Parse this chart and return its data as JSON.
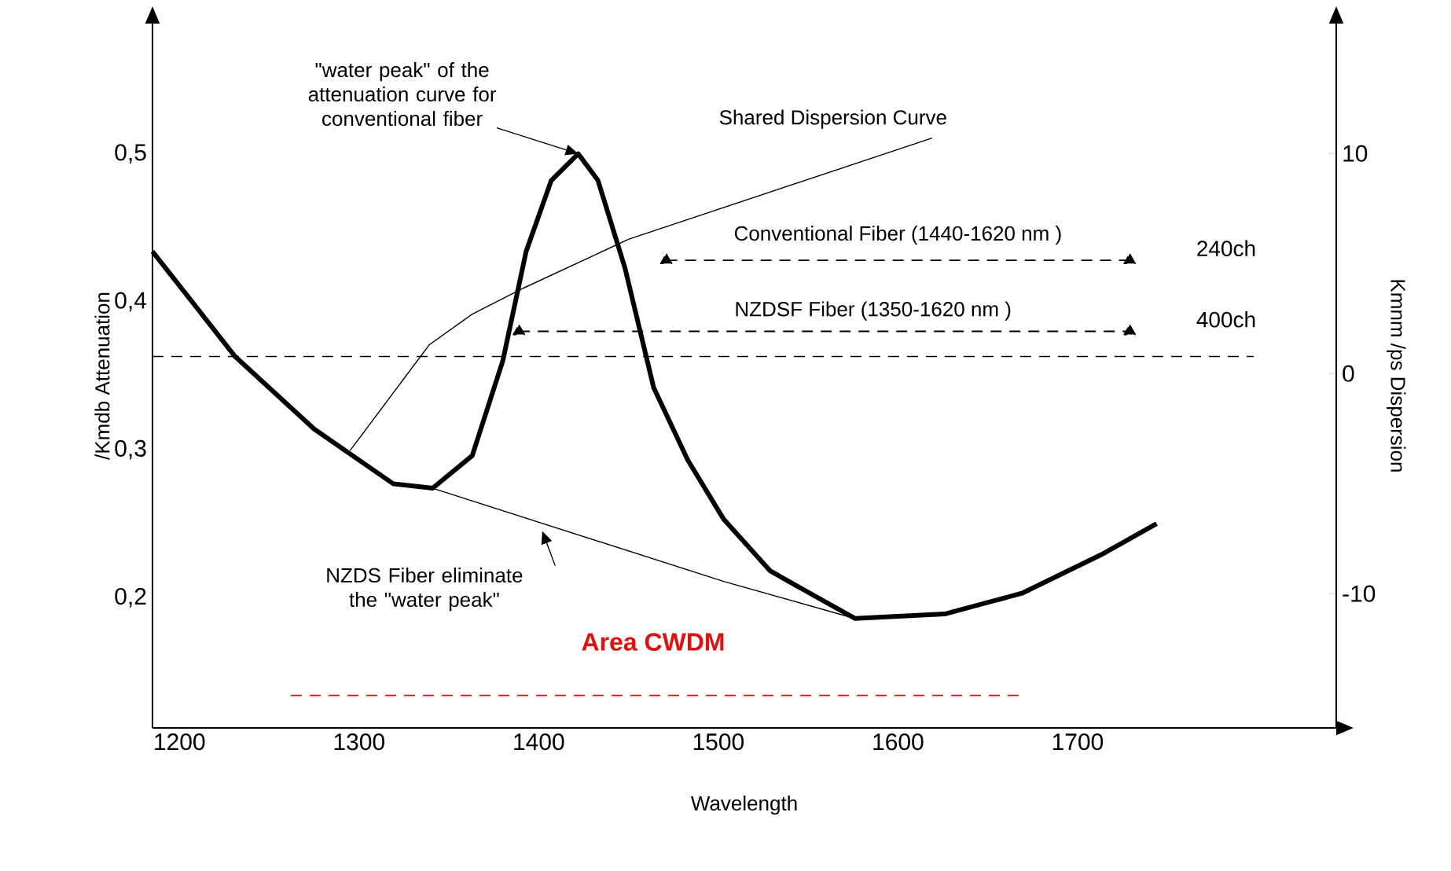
{
  "chart_data": {
    "type": "line",
    "xlabel": "Wavelength",
    "ylabel": "/Kmdb Attenuation",
    "y2label": "Kmnm /ps Dispersion",
    "xlim": [
      1185,
      1844
    ],
    "xticks": [
      1200,
      1300,
      1400,
      1500,
      1600,
      1700
    ],
    "ylim": [
      0.112,
      0.588
    ],
    "yticks": [
      {
        "value": 0.2,
        "label": "0,2"
      },
      {
        "value": 0.3,
        "label": "0,3"
      },
      {
        "value": 0.4,
        "label": "0,4"
      },
      {
        "value": 0.5,
        "label": "0,5"
      }
    ],
    "y2lim": [
      -16.1,
      15.9
    ],
    "y2ticks": [
      -10,
      0,
      10
    ],
    "series": [
      {
        "color": "#000000",
        "x": [
          1185,
          1231,
          1275,
          1319,
          1341,
          1363,
          1380,
          1393,
          1407,
          1422,
          1433,
          1448,
          1464,
          1483,
          1503,
          1529,
          1576,
          1626,
          1669,
          1713,
          1744
        ],
        "values": [
          0.434,
          0.363,
          0.314,
          0.277,
          0.274,
          0.296,
          0.36,
          0.434,
          0.482,
          0.5,
          0.482,
          0.423,
          0.342,
          0.293,
          0.253,
          0.218,
          0.186,
          0.189,
          0.203,
          0.229,
          0.25
        ]
      },
      {
        "color": "#000000",
        "x": [
          1341,
          1503,
          1576
        ],
        "values": [
          0.274,
          0.211,
          0.186
        ]
      },
      {
        "name": "Shared Dispersion Curve",
        "color": "#000000",
        "axis": "y2",
        "x": [
          1295,
          1339,
          1363,
          1392,
          1450,
          1619
        ],
        "values": [
          -3.5,
          1.3,
          2.7,
          3.9,
          6.1,
          10.7
        ]
      },
      {
        "name": "Conventional Fiber (1440-1620 nm )",
        "color": "#000000",
        "line_style": "dashed",
        "marker": "triangle",
        "x": [
          1471,
          1729
        ],
        "values": [
          0.428,
          0.428
        ]
      },
      {
        "name": "NZDSF Fiber (1350-1620 nm )",
        "color": "#000000",
        "line_style": "dashed",
        "marker": "triangle",
        "x": [
          1389,
          1729
        ],
        "values": [
          0.38,
          0.38
        ]
      },
      {
        "name": "Area CWDM",
        "color": "#e01010",
        "line_style": "dashed",
        "x": [
          1262,
          1669
        ],
        "values": [
          0.134,
          0.134
        ]
      }
    ],
    "ref_lines": [
      {
        "axis": "y",
        "value": 0.363,
        "line_style": "dashed"
      }
    ],
    "annotations": [
      {
        "text": "\"water peak\" of the attenuation curve for conventional fiber",
        "x": 1422,
        "y": 0.5
      },
      {
        "text": "NZDS Fiber eliminate the \"water peak\"",
        "x": 1402,
        "y": 0.245
      },
      "240ch",
      "400ch"
    ]
  }
}
